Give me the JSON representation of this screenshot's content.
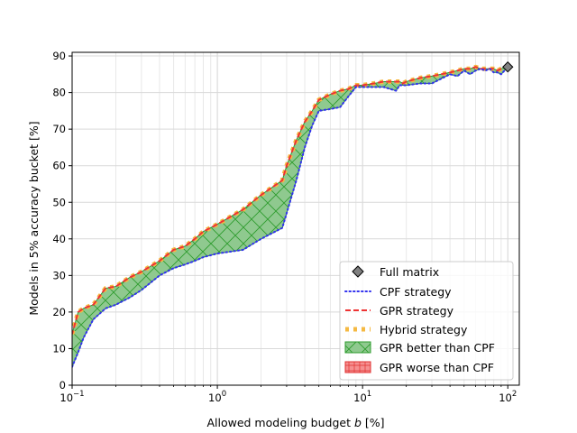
{
  "chart_data": {
    "type": "line",
    "xscale": "log",
    "xlabel": "Allowed modeling budget",
    "xlabel_var": "b",
    "xlabel_unit": "[%]",
    "ylabel": "Models in 5% accuracy bucket [%]",
    "xlim": [
      0.1,
      120
    ],
    "ylim": [
      0,
      91
    ],
    "x_ticks": [
      {
        "value": 0.1,
        "base": "10",
        "exp": "−1"
      },
      {
        "value": 1,
        "base": "10",
        "exp": "0"
      },
      {
        "value": 10,
        "base": "10",
        "exp": "1"
      },
      {
        "value": 100,
        "base": "10",
        "exp": "2"
      }
    ],
    "y_ticks": [
      {
        "value": 0,
        "label": "0"
      },
      {
        "value": 10,
        "label": "10"
      },
      {
        "value": 20,
        "label": "20"
      },
      {
        "value": 30,
        "label": "30"
      },
      {
        "value": 40,
        "label": "40"
      },
      {
        "value": 50,
        "label": "50"
      },
      {
        "value": 60,
        "label": "60"
      },
      {
        "value": 70,
        "label": "70"
      },
      {
        "value": 80,
        "label": "80"
      },
      {
        "value": 90,
        "label": "90"
      }
    ],
    "grid": true,
    "legend_position": "lower-right",
    "legend": [
      {
        "key": "full",
        "label": "Full matrix"
      },
      {
        "key": "cpf",
        "label": "CPF strategy"
      },
      {
        "key": "gpr",
        "label": "GPR strategy"
      },
      {
        "key": "hybrid",
        "label": "Hybrid strategy"
      },
      {
        "key": "better",
        "label": "GPR better than CPF"
      },
      {
        "key": "worse",
        "label": "GPR worse than CPF"
      }
    ],
    "colors": {
      "cpf": "#3333ee",
      "gpr": "#ee3333",
      "hybrid": "#f5b942",
      "better_fill": "#8fc98f",
      "better_edge": "#2e9c2e",
      "worse_fill": "#f59090",
      "worse_edge": "#e03030",
      "full_marker": "#808080"
    },
    "series": [
      {
        "key": "cpf",
        "x": [
          0.1,
          0.11,
          0.12,
          0.14,
          0.17,
          0.2,
          0.25,
          0.3,
          0.4,
          0.5,
          0.6,
          0.7,
          0.8,
          1.0,
          1.5,
          2.0,
          2.8,
          3.0,
          3.5,
          4.0,
          4.5,
          5.0,
          6.0,
          7.0,
          8.0,
          9.0,
          10.0,
          12.0,
          14.0,
          17.0,
          18.0,
          19.0,
          20.0,
          25.0,
          30.0,
          40.0,
          45.0,
          50.0,
          55.0,
          60.0,
          65.0,
          70.0,
          75.0,
          80.0,
          85.0,
          90.0,
          100.0
        ],
        "y": [
          5,
          9,
          13,
          18,
          21,
          22,
          24,
          26,
          30,
          32,
          33,
          34,
          35,
          36,
          37,
          40,
          43,
          47,
          56,
          65,
          71,
          75,
          75.5,
          76,
          79,
          81.5,
          81.5,
          81.5,
          81.5,
          80.5,
          82,
          82,
          82,
          82.5,
          82.5,
          85,
          84.5,
          86,
          85,
          86,
          86.5,
          86,
          86.5,
          85.5,
          85.5,
          85,
          87
        ]
      },
      {
        "key": "gpr",
        "x": [
          0.1,
          0.11,
          0.12,
          0.14,
          0.17,
          0.2,
          0.25,
          0.3,
          0.4,
          0.5,
          0.6,
          0.7,
          0.8,
          1.0,
          1.5,
          2.0,
          2.8,
          3.0,
          3.5,
          4.0,
          4.5,
          5.0,
          6.0,
          7.0,
          8.0,
          9.0,
          10.0,
          12.0,
          14.0,
          17.0,
          18.0,
          19.0,
          20.0,
          25.0,
          30.0,
          40.0,
          45.0,
          50.0,
          55.0,
          60.0,
          65.0,
          70.0,
          75.0,
          80.0,
          85.0,
          90.0,
          100.0
        ],
        "y": [
          14,
          20,
          21,
          22,
          26.5,
          27,
          29.5,
          31,
          34,
          37,
          38,
          40,
          42,
          44,
          48,
          52,
          56,
          60,
          67,
          72,
          75,
          78,
          79.5,
          80.5,
          81,
          82,
          82,
          82.5,
          83,
          83,
          83,
          82.5,
          83,
          84,
          84.5,
          85.5,
          86,
          86.5,
          86.5,
          87,
          86.5,
          86.5,
          86.5,
          86.5,
          86,
          86.5,
          87
        ]
      },
      {
        "key": "hybrid",
        "x": [
          0.1,
          0.11,
          0.12,
          0.14,
          0.17,
          0.2,
          0.25,
          0.3,
          0.4,
          0.5,
          0.6,
          0.7,
          0.8,
          1.0,
          1.5,
          2.0,
          2.8,
          3.0,
          3.5,
          4.0,
          4.5,
          5.0,
          6.0,
          7.0,
          8.0,
          9.0,
          10.0,
          12.0,
          14.0,
          17.0,
          18.0,
          19.0,
          20.0,
          25.0,
          30.0,
          40.0,
          45.0,
          50.0,
          55.0,
          60.0,
          65.0,
          70.0,
          75.0,
          80.0,
          85.0,
          90.0,
          100.0
        ],
        "y": [
          14,
          20,
          21,
          22,
          26.5,
          27,
          29.5,
          31,
          34,
          37,
          38,
          40,
          42,
          44,
          48,
          52,
          56,
          60,
          67,
          72,
          75,
          78,
          79.5,
          80.5,
          81,
          82,
          82,
          82.5,
          83,
          83,
          83,
          82.5,
          83,
          84,
          84.5,
          85.5,
          86,
          86.5,
          86.5,
          87,
          86.5,
          86.5,
          86.5,
          86.5,
          86,
          86.5,
          87
        ]
      }
    ],
    "full_matrix_point": {
      "x": 100,
      "y": 87
    }
  }
}
